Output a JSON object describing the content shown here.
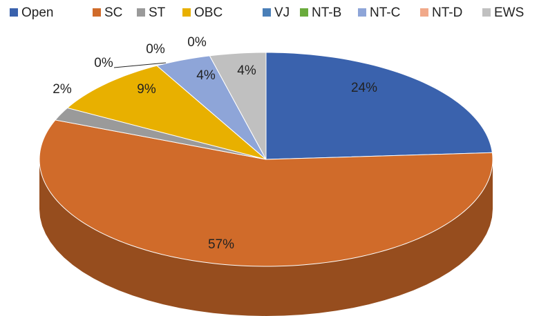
{
  "chart_data": {
    "type": "pie",
    "categories": [
      "Open",
      "SC",
      "ST",
      "OBC",
      "VJ",
      "NT-B",
      "NT-C",
      "NT-D",
      "EWS"
    ],
    "values": [
      24,
      57,
      2,
      9,
      0,
      0,
      4,
      0,
      4
    ],
    "value_labels": [
      "24%",
      "57%",
      "2%",
      "9%",
      "0%",
      "0%",
      "4%",
      "0%",
      "4%"
    ],
    "colors": [
      "#3a62ad",
      "#d06b2a",
      "#9a9a9a",
      "#e8b000",
      "#4a7fb8",
      "#6aab3c",
      "#8ea5d8",
      "#f1a98a",
      "#c0c0c0"
    ],
    "legend": "top"
  }
}
